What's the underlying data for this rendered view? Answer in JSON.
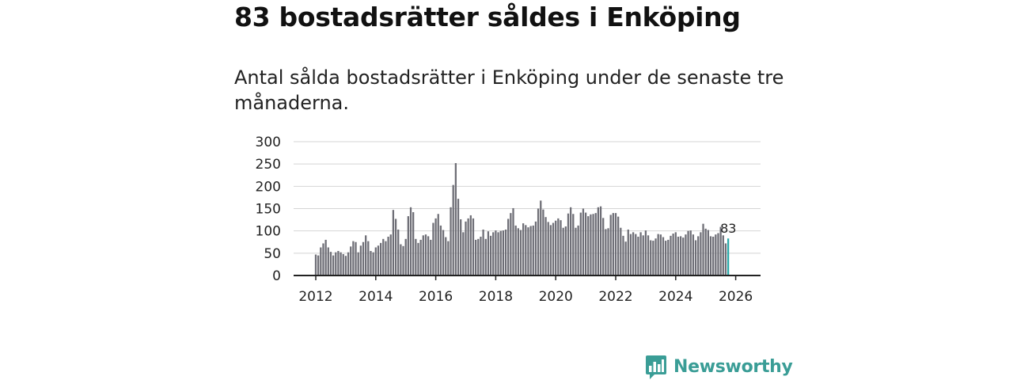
{
  "header": {
    "title": "83 bostadsrätter såldes i Enköping",
    "subtitle": "Antal sålda bostadsrätter i Enköping under de senaste tre månaderna."
  },
  "brand": {
    "name": "Newsworthy",
    "color": "#3a9d96"
  },
  "chart_data": {
    "type": "bar",
    "title": "",
    "xlabel": "",
    "ylabel": "",
    "ylim": [
      0,
      300
    ],
    "yticks": [
      0,
      50,
      100,
      150,
      200,
      250,
      300
    ],
    "xticks": [
      2012,
      2014,
      2016,
      2018,
      2020,
      2022,
      2024,
      2026
    ],
    "x_start": "2012-01",
    "bar_color": "#6e6e76",
    "highlight_color": "#2aa8a8",
    "highlight_label": "83",
    "series": [
      {
        "name": "Antal sålda bostadsrätter",
        "values": [
          47,
          45,
          63,
          72,
          80,
          63,
          53,
          45,
          52,
          55,
          52,
          48,
          44,
          52,
          65,
          77,
          75,
          52,
          67,
          75,
          90,
          77,
          55,
          52,
          63,
          67,
          73,
          82,
          77,
          87,
          92,
          147,
          127,
          103,
          70,
          66,
          82,
          133,
          153,
          142,
          82,
          73,
          80,
          90,
          92,
          88,
          80,
          118,
          128,
          138,
          112,
          102,
          86,
          77,
          153,
          203,
          252,
          172,
          126,
          97,
          121,
          128,
          135,
          128,
          80,
          82,
          87,
          103,
          82,
          99,
          89,
          97,
          101,
          97,
          100,
          101,
          103,
          127,
          140,
          151,
          112,
          106,
          102,
          117,
          113,
          108,
          111,
          112,
          121,
          150,
          168,
          148,
          131,
          120,
          113,
          118,
          123,
          128,
          124,
          107,
          110,
          139,
          153,
          138,
          107,
          112,
          141,
          150,
          141,
          133,
          137,
          138,
          140,
          153,
          155,
          129,
          104,
          106,
          136,
          140,
          140,
          132,
          107,
          89,
          76,
          103,
          93,
          97,
          93,
          87,
          97,
          90,
          101,
          90,
          79,
          78,
          83,
          93,
          92,
          86,
          78,
          80,
          89,
          94,
          97,
          87,
          88,
          85,
          92,
          100,
          101,
          92,
          79,
          88,
          97,
          116,
          105,
          102,
          88,
          87,
          92,
          95,
          109,
          90,
          72,
          83
        ],
        "highlight_last": true
      }
    ]
  }
}
